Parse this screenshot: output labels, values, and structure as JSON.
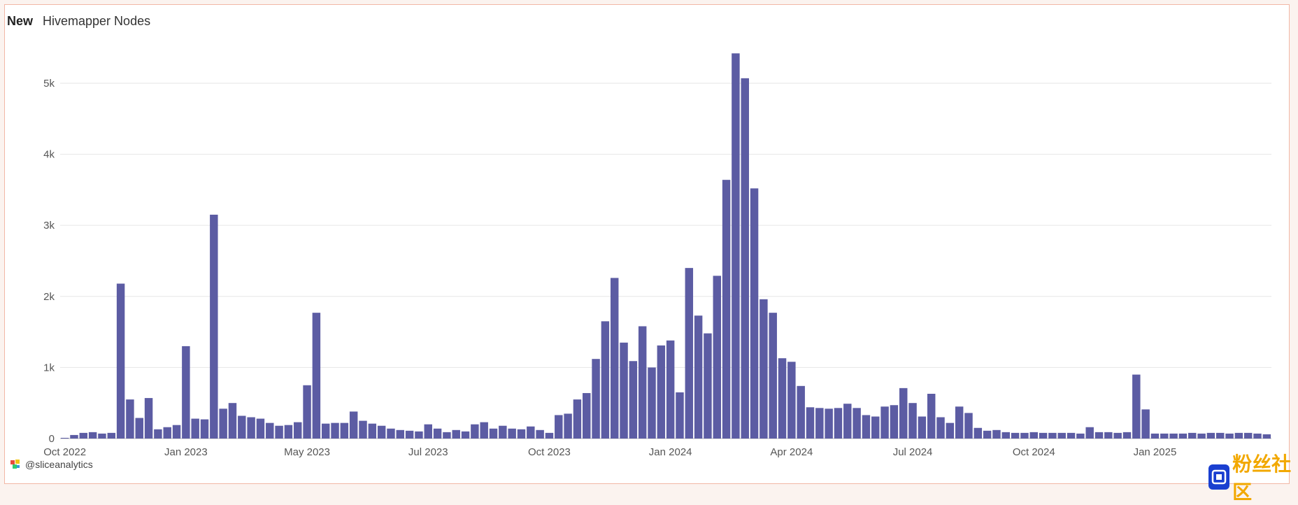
{
  "header": {
    "badge": "New",
    "title": "Hivemapper Nodes"
  },
  "footer": {
    "handle": "@sliceanalytics"
  },
  "watermark": {
    "text": "粉丝社区"
  },
  "colors": {
    "bar": "#5c5ca3",
    "grid": "#e6e6e6",
    "accent_border": "#f2b7a5"
  },
  "chart_data": {
    "type": "bar",
    "title": "Hivemapper Nodes",
    "xlabel": "",
    "ylabel": "",
    "ylim": [
      0,
      5600
    ],
    "y_ticks": [
      {
        "value": 0,
        "label": "0"
      },
      {
        "value": 1000,
        "label": "1k"
      },
      {
        "value": 2000,
        "label": "2k"
      },
      {
        "value": 3000,
        "label": "3k"
      },
      {
        "value": 4000,
        "label": "4k"
      },
      {
        "value": 5000,
        "label": "5k"
      }
    ],
    "x_ticks": [
      {
        "index": 0,
        "label": "Oct 2022"
      },
      {
        "index": 13,
        "label": "Jan 2023"
      },
      {
        "index": 26,
        "label": "May 2023"
      },
      {
        "index": 39,
        "label": "Jul 2023"
      },
      {
        "index": 52,
        "label": "Oct 2023"
      },
      {
        "index": 65,
        "label": "Jan 2024"
      },
      {
        "index": 78,
        "label": "Apr 2024"
      },
      {
        "index": 91,
        "label": "Jul 2024"
      },
      {
        "index": 104,
        "label": "Oct 2024"
      },
      {
        "index": 117,
        "label": "Jan 2025"
      }
    ],
    "grid": true,
    "legend": "none",
    "values": [
      10,
      50,
      80,
      90,
      70,
      80,
      2180,
      550,
      290,
      570,
      130,
      160,
      190,
      1300,
      280,
      270,
      3150,
      420,
      500,
      320,
      300,
      280,
      220,
      180,
      190,
      230,
      750,
      1770,
      210,
      220,
      220,
      380,
      250,
      210,
      180,
      140,
      120,
      110,
      100,
      200,
      140,
      90,
      120,
      100,
      200,
      230,
      140,
      180,
      140,
      130,
      170,
      120,
      80,
      330,
      350,
      550,
      640,
      1120,
      1650,
      2260,
      1350,
      1090,
      1580,
      1000,
      1310,
      1380,
      650,
      2400,
      1730,
      1480,
      2290,
      3640,
      5420,
      5070,
      3520,
      1960,
      1770,
      1130,
      1080,
      740,
      440,
      430,
      420,
      430,
      490,
      430,
      330,
      310,
      450,
      470,
      710,
      500,
      310,
      630,
      300,
      220,
      450,
      360,
      150,
      110,
      120,
      90,
      80,
      80,
      90,
      80,
      80,
      80,
      80,
      70,
      160,
      90,
      90,
      80,
      90,
      900,
      410,
      70,
      70,
      70,
      70,
      80,
      70,
      80,
      80,
      70,
      80,
      80,
      70,
      60
    ]
  }
}
